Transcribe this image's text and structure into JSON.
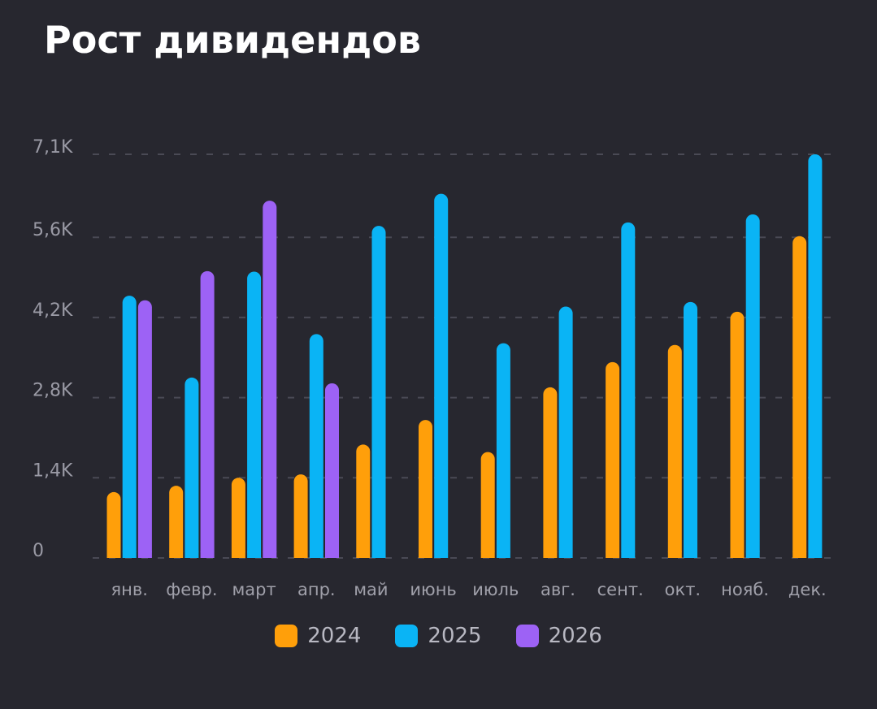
{
  "title": "Рост дивидендов",
  "chart_data": {
    "type": "bar",
    "title": "Рост дивидендов",
    "xlabel": "",
    "ylabel": "",
    "categories": [
      "янв.",
      "февр.",
      "март",
      "апр.",
      "май",
      "июнь",
      "июль",
      "авг.",
      "сент.",
      "окт.",
      "нояб.",
      "дек."
    ],
    "y_tick_labels": [
      "0",
      "1,4K",
      "2,8K",
      "4,2K",
      "5,6K",
      "7,1K"
    ],
    "y_tick_values": [
      0,
      1400,
      2800,
      4200,
      5600,
      7050
    ],
    "ylim": [
      0,
      7050
    ],
    "grid": true,
    "legend_position": "bottom",
    "series": [
      {
        "name": "2024",
        "color": "#ff9f0a",
        "values": [
          1150,
          1260,
          1400,
          1460,
          1980,
          2410,
          1850,
          2980,
          3420,
          3720,
          4300,
          5620
        ]
      },
      {
        "name": "2025",
        "color": "#0ab4f5",
        "values": [
          4580,
          3150,
          5000,
          3910,
          5800,
          6360,
          3750,
          4390,
          5860,
          4470,
          6000,
          7050
        ]
      },
      {
        "name": "2026",
        "color": "#9d62f5",
        "values": [
          4500,
          5010,
          6240,
          3050,
          null,
          null,
          null,
          null,
          null,
          null,
          null,
          null
        ]
      }
    ]
  }
}
